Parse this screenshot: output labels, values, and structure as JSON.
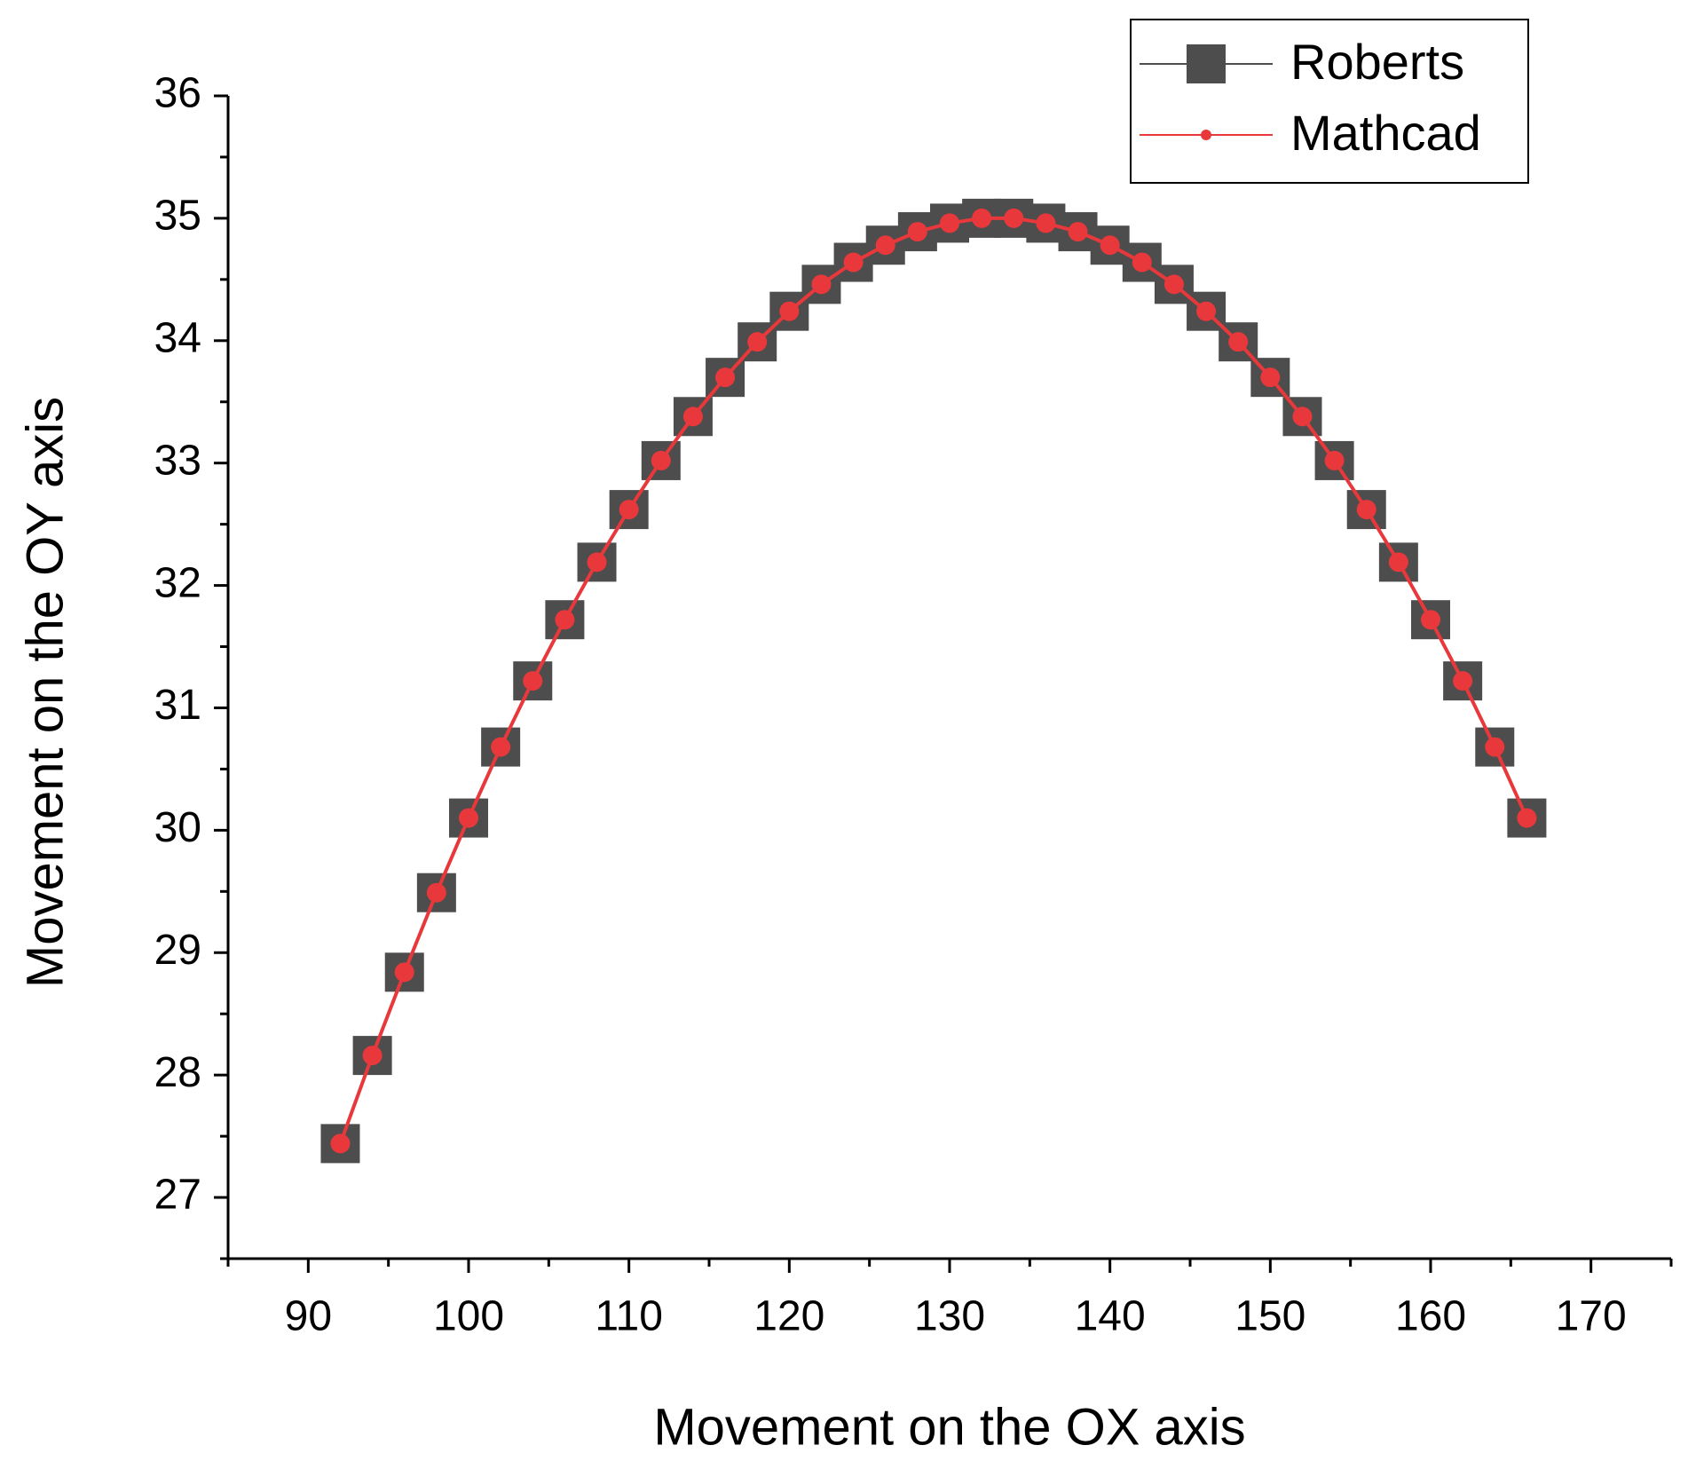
{
  "chart_data": {
    "type": "line",
    "xlabel": "Movement on the OX axis",
    "ylabel": "Movement on the OY axis",
    "x": [
      92,
      94,
      96,
      98,
      100,
      102,
      104,
      106,
      108,
      110,
      112,
      114,
      116,
      118,
      120,
      122,
      124,
      126,
      128,
      130,
      132,
      134,
      136,
      138,
      140,
      142,
      144,
      146,
      148,
      150,
      152,
      154,
      156,
      158,
      160,
      162,
      164,
      166
    ],
    "series": [
      {
        "name": "Roberts",
        "color": "#4d4d4d",
        "marker": "square",
        "values": [
          27.44,
          28.16,
          28.84,
          29.49,
          30.1,
          30.68,
          31.22,
          31.72,
          32.19,
          32.62,
          33.02,
          33.38,
          33.7,
          33.99,
          34.24,
          34.46,
          34.64,
          34.78,
          34.89,
          34.96,
          35.0,
          35.0,
          34.96,
          34.89,
          34.78,
          34.64,
          34.46,
          34.24,
          33.99,
          33.7,
          33.38,
          33.02,
          32.62,
          32.19,
          31.72,
          31.22,
          30.68,
          30.1
        ]
      },
      {
        "name": "Mathcad",
        "color": "#e8383b",
        "marker": "dot",
        "values": [
          27.44,
          28.16,
          28.84,
          29.49,
          30.1,
          30.68,
          31.22,
          31.72,
          32.19,
          32.62,
          33.02,
          33.38,
          33.7,
          33.99,
          34.24,
          34.46,
          34.64,
          34.78,
          34.89,
          34.96,
          35.0,
          35.0,
          34.96,
          34.89,
          34.78,
          34.64,
          34.46,
          34.24,
          33.99,
          33.7,
          33.38,
          33.02,
          32.62,
          32.19,
          31.72,
          31.22,
          30.68,
          30.1
        ]
      }
    ],
    "xlim": [
      85,
      175
    ],
    "xticks": [
      90,
      100,
      110,
      120,
      130,
      140,
      150,
      160,
      170
    ],
    "ylim": [
      26.5,
      36
    ],
    "yticks": [
      27,
      28,
      29,
      30,
      31,
      32,
      33,
      34,
      35,
      36
    ],
    "grid": false,
    "legend": "upper right"
  }
}
